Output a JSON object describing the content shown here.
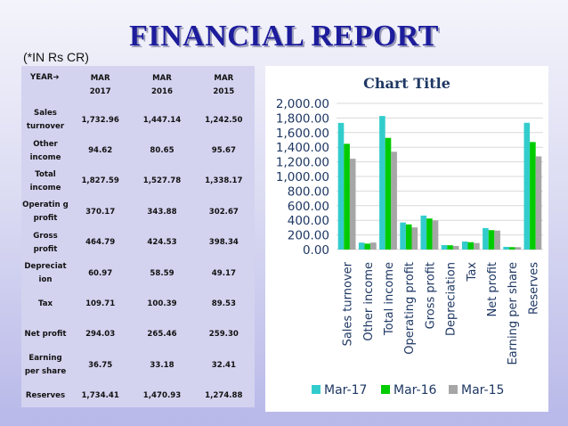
{
  "slide": {
    "title": "FINANCIAL REPORT",
    "unit_note": "(*IN Rs CR)"
  },
  "table": {
    "year_header": "YEAR➔",
    "columns": [
      {
        "l1": "MAR",
        "l2": "2017"
      },
      {
        "l1": "MAR",
        "l2": "2016"
      },
      {
        "l1": "MAR",
        "l2": "2015"
      }
    ],
    "rows": [
      {
        "label": "Sales turnover",
        "values": [
          "1,732.96",
          "1,447.14",
          "1,242.50"
        ]
      },
      {
        "label": "Other income",
        "values": [
          "94.62",
          "80.65",
          "95.67"
        ]
      },
      {
        "label": "Total income",
        "values": [
          "1,827.59",
          "1,527.78",
          "1,338.17"
        ]
      },
      {
        "label": "Operatin g profit",
        "values": [
          "370.17",
          "343.88",
          "302.67"
        ]
      },
      {
        "label": "Gross profit",
        "values": [
          "464.79",
          "424.53",
          "398.34"
        ]
      },
      {
        "label": "Depreciat ion",
        "values": [
          "60.97",
          "58.59",
          "49.17"
        ]
      },
      {
        "label": "Tax",
        "values": [
          "109.71",
          "100.39",
          "89.53"
        ]
      },
      {
        "label": "Net profit",
        "values": [
          "294.03",
          "265.46",
          "259.30"
        ]
      },
      {
        "label": "Earning per share",
        "values": [
          "36.75",
          "33.18",
          "32.41"
        ]
      },
      {
        "label": "Reserves",
        "values": [
          "1,734.41",
          "1,470.93",
          "1,274.88"
        ]
      }
    ]
  },
  "chart_data": {
    "type": "bar",
    "title": "Chart Title",
    "categories": [
      "Sales turnover",
      "Other income",
      "Total income",
      "Operating profit",
      "Gross profit",
      "Depreciation",
      "Tax",
      "Net profit",
      "Earning per share",
      "Reserves"
    ],
    "series": [
      {
        "name": "Mar-17",
        "color": "#33cccc",
        "values": [
          1732.96,
          94.62,
          1827.59,
          370.17,
          464.79,
          60.97,
          109.71,
          294.03,
          36.75,
          1734.41
        ]
      },
      {
        "name": "Mar-16",
        "color": "#00cc00",
        "values": [
          1447.14,
          80.65,
          1527.78,
          343.88,
          424.53,
          58.59,
          100.39,
          265.46,
          33.18,
          1470.93
        ]
      },
      {
        "name": "Mar-15",
        "color": "#a6a6a6",
        "values": [
          1242.5,
          95.67,
          1338.17,
          302.67,
          398.34,
          49.17,
          89.53,
          259.3,
          32.41,
          1274.88
        ]
      }
    ],
    "y_ticks": [
      "0.00",
      "200.00",
      "400.00",
      "600.00",
      "800.00",
      "1,000.00",
      "1,200.00",
      "1,400.00",
      "1,600.00",
      "1,800.00",
      "2,000.00"
    ],
    "ylim": [
      0,
      2000
    ],
    "grid": true,
    "legend_position": "bottom"
  }
}
